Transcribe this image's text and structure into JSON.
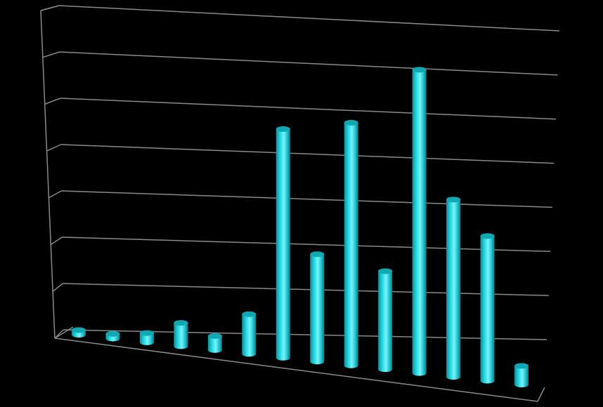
{
  "chart_data": {
    "type": "bar",
    "style": "3d-cylinder",
    "grid": true,
    "gridlines": 7,
    "ylim": [
      0,
      7
    ],
    "bar_color": "#1ad2de",
    "grid_color": "#8a8a8a",
    "background": "#000000",
    "categories": [
      "",
      "",
      "",
      "",
      "",
      "",
      "",
      "",
      "",
      "",
      "",
      "",
      "",
      ""
    ],
    "series": [
      {
        "values": [
          0.1,
          0.1,
          0.2,
          0.5,
          0.3,
          0.85,
          4.9,
          2.3,
          5.2,
          2.1,
          6.5,
          3.8,
          3.1,
          0.4
        ]
      }
    ]
  }
}
